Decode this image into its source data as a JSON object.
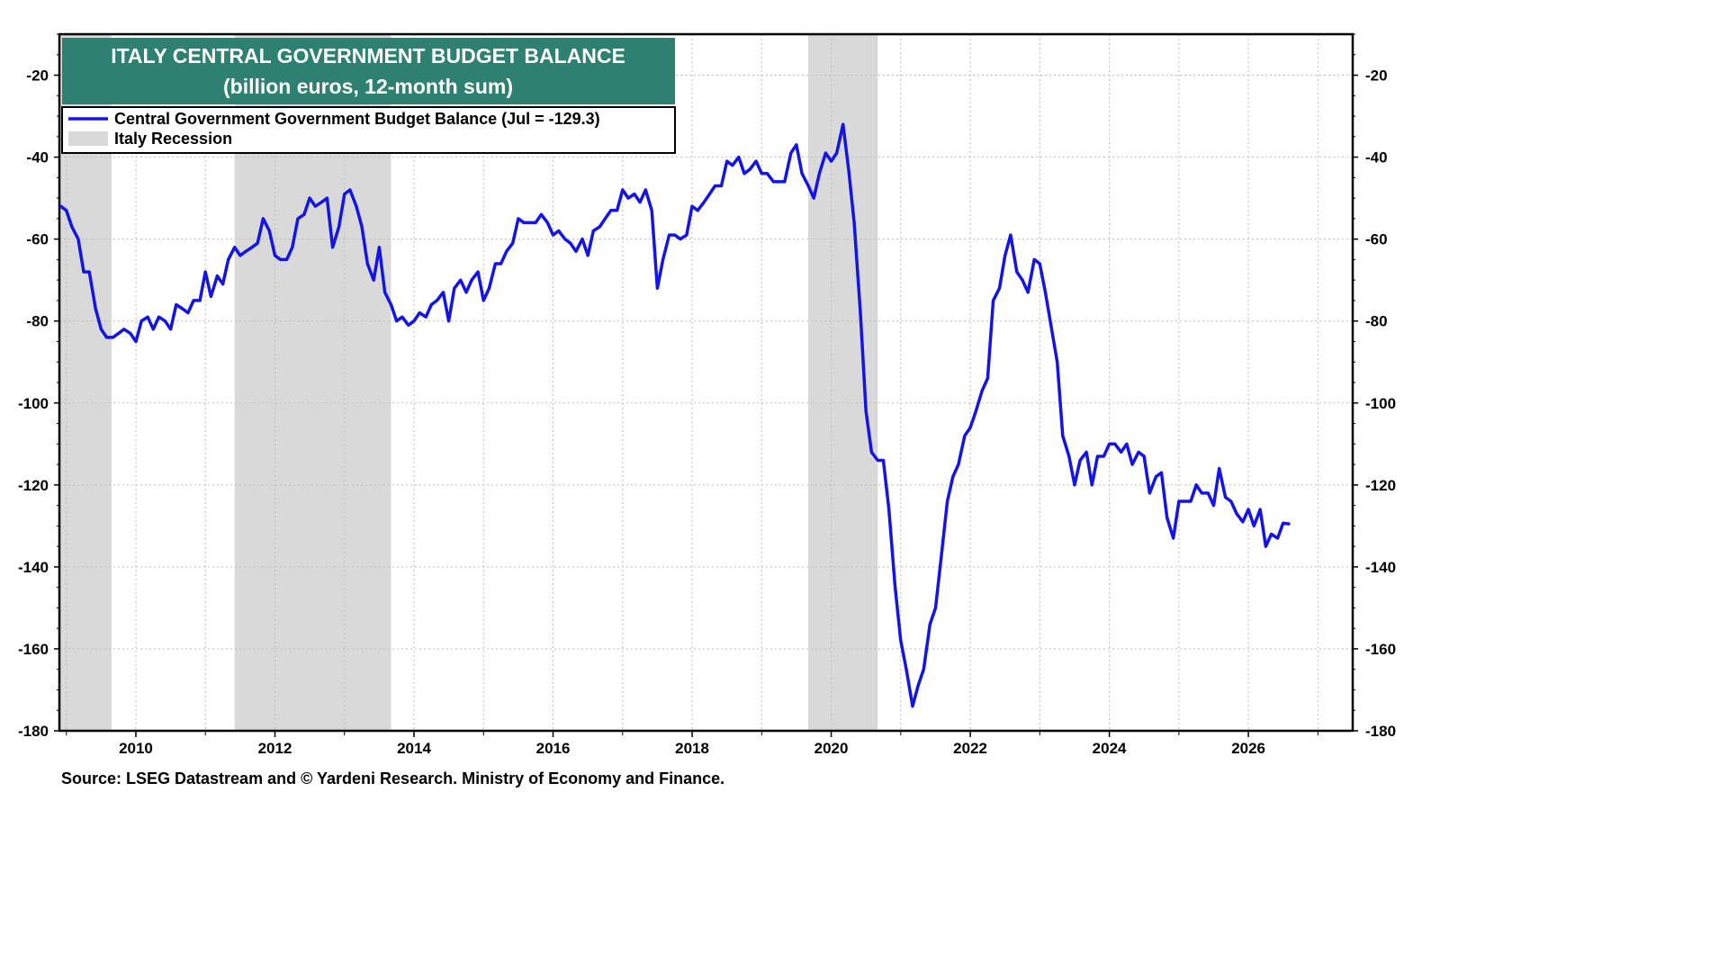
{
  "chart_data": {
    "type": "line",
    "title": "ITALY CENTRAL GOVERNMENT BUDGET BALANCE",
    "subtitle": "(billion euros, 12-month sum)",
    "xlabel": "",
    "ylabel": "",
    "xlim": [
      2008.9,
      2027.5
    ],
    "ylim": [
      -180,
      -10
    ],
    "x_ticks": [
      "2010",
      "2012",
      "2014",
      "2016",
      "2018",
      "2020",
      "2022",
      "2024",
      "2026"
    ],
    "y_ticks": [
      "-20",
      "-40",
      "-60",
      "-80",
      "-100",
      "-120",
      "-140",
      "-160",
      "-180"
    ],
    "grid": true,
    "legend_position": "top-left",
    "colors": {
      "line": "#1414e6",
      "recession": "#d9d9d9",
      "title_bg": "#2e8070"
    },
    "recessions": [
      {
        "start": 2008.9,
        "end": 2009.65
      },
      {
        "start": 2011.42,
        "end": 2013.67
      },
      {
        "start": 2019.67,
        "end": 2020.67
      }
    ],
    "legend": [
      {
        "label": "Central Government Government Budget Balance (Jul = -129.3)",
        "kind": "line"
      },
      {
        "label": "Italy Recession",
        "kind": "area"
      }
    ],
    "series": [
      {
        "name": "Central Government Government Budget Balance (Jul = -129.3)",
        "x": [
          2008.92,
          2009.0,
          2009.08,
          2009.17,
          2009.25,
          2009.33,
          2009.42,
          2009.5,
          2009.58,
          2009.67,
          2009.75,
          2009.83,
          2009.92,
          2010.0,
          2010.08,
          2010.17,
          2010.25,
          2010.33,
          2010.42,
          2010.5,
          2010.58,
          2010.67,
          2010.75,
          2010.83,
          2010.92,
          2011.0,
          2011.08,
          2011.17,
          2011.25,
          2011.33,
          2011.42,
          2011.5,
          2011.58,
          2011.67,
          2011.75,
          2011.83,
          2011.92,
          2012.0,
          2012.08,
          2012.17,
          2012.25,
          2012.33,
          2012.42,
          2012.5,
          2012.58,
          2012.67,
          2012.75,
          2012.83,
          2012.92,
          2013.0,
          2013.08,
          2013.17,
          2013.25,
          2013.33,
          2013.42,
          2013.5,
          2013.58,
          2013.67,
          2013.75,
          2013.83,
          2013.92,
          2014.0,
          2014.08,
          2014.17,
          2014.25,
          2014.33,
          2014.42,
          2014.5,
          2014.58,
          2014.67,
          2014.75,
          2014.83,
          2014.92,
          2015.0,
          2015.08,
          2015.17,
          2015.25,
          2015.33,
          2015.42,
          2015.5,
          2015.58,
          2015.67,
          2015.75,
          2015.83,
          2015.92,
          2016.0,
          2016.08,
          2016.17,
          2016.25,
          2016.33,
          2016.42,
          2016.5,
          2016.58,
          2016.67,
          2016.75,
          2016.83,
          2016.92,
          2017.0,
          2017.08,
          2017.17,
          2017.25,
          2017.33,
          2017.42,
          2017.5,
          2017.58,
          2017.67,
          2017.75,
          2017.83,
          2017.92,
          2018.0,
          2018.08,
          2018.17,
          2018.25,
          2018.33,
          2018.42,
          2018.5,
          2018.58,
          2018.67,
          2018.75,
          2018.83,
          2018.92,
          2019.0,
          2019.08,
          2019.17,
          2019.25,
          2019.33,
          2019.42,
          2019.5,
          2019.58,
          2019.67,
          2019.75,
          2019.83,
          2019.92,
          2020.0,
          2020.08,
          2020.17,
          2020.25,
          2020.33,
          2020.42,
          2020.5,
          2020.58,
          2020.67,
          2020.75,
          2020.83,
          2020.92,
          2021.0,
          2021.08,
          2021.17,
          2021.25,
          2021.33,
          2021.42,
          2021.5,
          2021.58,
          2021.67,
          2021.75,
          2021.83,
          2021.92,
          2022.0,
          2022.08,
          2022.17,
          2022.25,
          2022.33,
          2022.42,
          2022.5,
          2022.58,
          2022.67,
          2022.75,
          2022.83,
          2022.92,
          2023.0,
          2023.08,
          2023.17,
          2023.25,
          2023.33,
          2023.42,
          2023.5,
          2023.58,
          2023.67,
          2023.75,
          2023.83,
          2023.92,
          2024.0,
          2024.08,
          2024.17,
          2024.25,
          2024.33,
          2024.42,
          2024.5,
          2024.58,
          2024.67,
          2024.75,
          2024.83,
          2024.92,
          2025.0,
          2025.08,
          2025.17,
          2025.25,
          2025.33,
          2025.42,
          2025.5,
          2025.58,
          2025.67,
          2025.75,
          2025.83,
          2025.92,
          2026.0,
          2026.08,
          2026.17,
          2026.25,
          2026.33,
          2026.42,
          2026.5,
          2026.58
        ],
        "values": [
          -52,
          -53,
          -57,
          -60,
          -68,
          -68,
          -77,
          -82,
          -84,
          -84,
          -83,
          -82,
          -83,
          -85,
          -80,
          -79,
          -82,
          -79,
          -80,
          -82,
          -76,
          -77,
          -78,
          -75,
          -75,
          -68,
          -74,
          -69,
          -71,
          -65,
          -62,
          -64,
          -63,
          -62,
          -61,
          -55,
          -58,
          -64,
          -65,
          -65,
          -62,
          -55,
          -54,
          -50,
          -52,
          -51,
          -50,
          -62,
          -57,
          -49,
          -48,
          -52,
          -57,
          -66,
          -70,
          -62,
          -73,
          -76,
          -80,
          -79,
          -81,
          -80,
          -78,
          -79,
          -76,
          -75,
          -73,
          -80,
          -72,
          -70,
          -73,
          -70,
          -68,
          -75,
          -72,
          -66,
          -66,
          -63,
          -61,
          -55,
          -56,
          -56,
          -56,
          -54,
          -56,
          -59,
          -58,
          -60,
          -61,
          -63,
          -60,
          -64,
          -58,
          -57,
          -55,
          -53,
          -53,
          -48,
          -50,
          -49,
          -51,
          -48,
          -53,
          -72,
          -65,
          -59,
          -59,
          -60,
          -59,
          -52,
          -53,
          -51,
          -49,
          -47,
          -47,
          -41,
          -42,
          -40,
          -44,
          -43,
          -41,
          -44,
          -44,
          -46,
          -46,
          -46,
          -39,
          -37,
          -44,
          -47,
          -50,
          -44,
          -39,
          -41,
          -39,
          -32,
          -43,
          -56,
          -78,
          -102,
          -112,
          -114,
          -114,
          -126,
          -145,
          -158,
          -165,
          -174,
          -169,
          -165,
          -154,
          -150,
          -138,
          -124,
          -118,
          -115,
          -108,
          -106,
          -102,
          -97,
          -94,
          -75,
          -72,
          -64,
          -59,
          -68,
          -70,
          -73,
          -65,
          -66,
          -73,
          -82,
          -90,
          -108,
          -113,
          -120,
          -114,
          -112,
          -120,
          -113,
          -113,
          -110,
          -110,
          -112,
          -110,
          -115,
          -112,
          -113,
          -122,
          -118,
          -117,
          -128,
          -133,
          -124,
          -124,
          -124,
          -120,
          -122,
          -122,
          -125,
          -116,
          -123,
          -124,
          -127,
          -129,
          -126,
          -130,
          -126,
          -135,
          -132,
          -133,
          -129.3,
          -129.5
        ]
      }
    ],
    "source": "Source: LSEG Datastream and © Yardeni Research. Ministry of Economy and Finance."
  }
}
